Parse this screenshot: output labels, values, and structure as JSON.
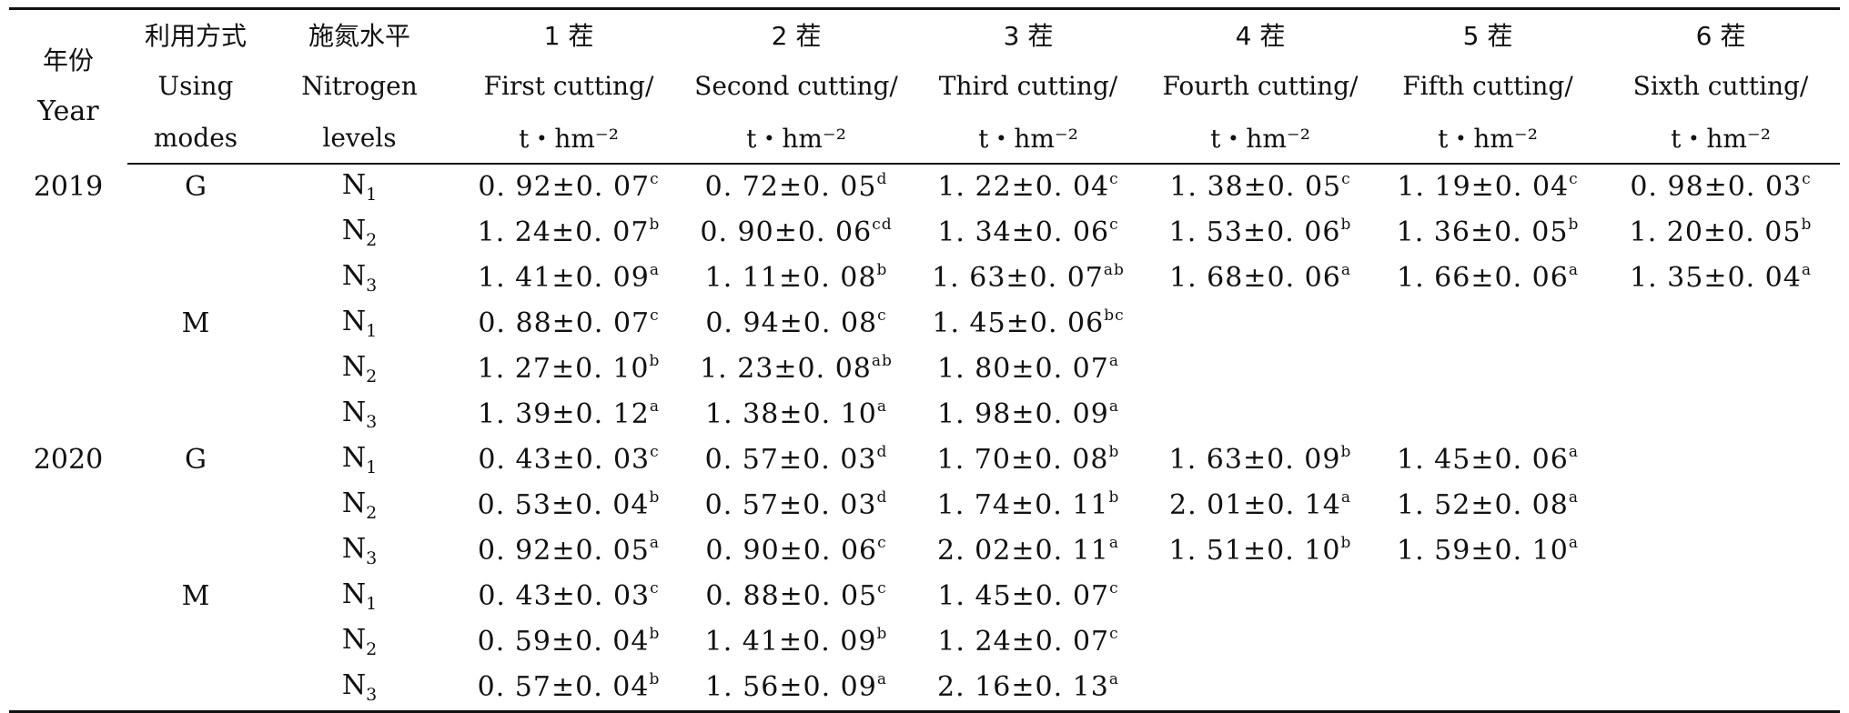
{
  "header": {
    "year_zh": "年份",
    "year_en": "Year",
    "mode_zh": "利用方式",
    "mode_en_1": "Using",
    "mode_en_2": "modes",
    "n_zh": "施氮水平",
    "n_en_1": "Nitrogen",
    "n_en_2": "levels",
    "unit": "t・hm⁻²",
    "cuttings": [
      {
        "zh": "1 茬",
        "en": "First cutting/"
      },
      {
        "zh": "2 茬",
        "en": "Second cutting/"
      },
      {
        "zh": "3 茬",
        "en": "Third cutting/"
      },
      {
        "zh": "4 茬",
        "en": "Fourth cutting/"
      },
      {
        "zh": "5 茬",
        "en": "Fifth cutting/"
      },
      {
        "zh": "6 茬",
        "en": "Sixth cutting/"
      }
    ]
  },
  "rows": [
    {
      "year": "2019",
      "mode": "G",
      "n": "N",
      "nsub": "1",
      "cells": [
        {
          "v": "0. 92±0. 07",
          "s": "c"
        },
        {
          "v": "0. 72±0. 05",
          "s": "d"
        },
        {
          "v": "1. 22±0. 04",
          "s": "c"
        },
        {
          "v": "1. 38±0. 05",
          "s": "c"
        },
        {
          "v": "1. 19±0. 04",
          "s": "c"
        },
        {
          "v": "0. 98±0. 03",
          "s": "c"
        }
      ]
    },
    {
      "year": "",
      "mode": "",
      "n": "N",
      "nsub": "2",
      "cells": [
        {
          "v": "1. 24±0. 07",
          "s": "b"
        },
        {
          "v": "0. 90±0. 06",
          "s": "cd"
        },
        {
          "v": "1. 34±0. 06",
          "s": "c"
        },
        {
          "v": "1. 53±0. 06",
          "s": "b"
        },
        {
          "v": "1. 36±0. 05",
          "s": "b"
        },
        {
          "v": "1. 20±0. 05",
          "s": "b"
        }
      ]
    },
    {
      "year": "",
      "mode": "",
      "n": "N",
      "nsub": "3",
      "cells": [
        {
          "v": "1. 41±0. 09",
          "s": "a"
        },
        {
          "v": "1. 11±0. 08",
          "s": "b"
        },
        {
          "v": "1. 63±0. 07",
          "s": "ab"
        },
        {
          "v": "1. 68±0. 06",
          "s": "a"
        },
        {
          "v": "1. 66±0. 06",
          "s": "a"
        },
        {
          "v": "1. 35±0. 04",
          "s": "a"
        }
      ]
    },
    {
      "year": "",
      "mode": "M",
      "n": "N",
      "nsub": "1",
      "cells": [
        {
          "v": "0. 88±0. 07",
          "s": "c"
        },
        {
          "v": "0. 94±0. 08",
          "s": "c"
        },
        {
          "v": "1. 45±0. 06",
          "s": "bc"
        },
        {
          "v": "",
          "s": ""
        },
        {
          "v": "",
          "s": ""
        },
        {
          "v": "",
          "s": ""
        }
      ]
    },
    {
      "year": "",
      "mode": "",
      "n": "N",
      "nsub": "2",
      "cells": [
        {
          "v": "1. 27±0. 10",
          "s": "b"
        },
        {
          "v": "1. 23±0. 08",
          "s": "ab"
        },
        {
          "v": "1. 80±0. 07",
          "s": "a"
        },
        {
          "v": "",
          "s": ""
        },
        {
          "v": "",
          "s": ""
        },
        {
          "v": "",
          "s": ""
        }
      ]
    },
    {
      "year": "",
      "mode": "",
      "n": "N",
      "nsub": "3",
      "cells": [
        {
          "v": "1. 39±0. 12",
          "s": "a"
        },
        {
          "v": "1. 38±0. 10",
          "s": "a"
        },
        {
          "v": "1. 98±0. 09",
          "s": "a"
        },
        {
          "v": "",
          "s": ""
        },
        {
          "v": "",
          "s": ""
        },
        {
          "v": "",
          "s": ""
        }
      ]
    },
    {
      "year": "2020",
      "mode": "G",
      "n": "N",
      "nsub": "1",
      "cells": [
        {
          "v": "0. 43±0. 03",
          "s": "c"
        },
        {
          "v": "0. 57±0. 03",
          "s": "d"
        },
        {
          "v": "1. 70±0. 08",
          "s": "b"
        },
        {
          "v": "1. 63±0. 09",
          "s": "b"
        },
        {
          "v": "1. 45±0. 06",
          "s": "a"
        },
        {
          "v": "",
          "s": ""
        }
      ]
    },
    {
      "year": "",
      "mode": "",
      "n": "N",
      "nsub": "2",
      "cells": [
        {
          "v": "0. 53±0. 04",
          "s": "b"
        },
        {
          "v": "0. 57±0. 03",
          "s": "d"
        },
        {
          "v": "1. 74±0. 11",
          "s": "b"
        },
        {
          "v": "2. 01±0. 14",
          "s": "a"
        },
        {
          "v": "1. 52±0. 08",
          "s": "a"
        },
        {
          "v": "",
          "s": ""
        }
      ]
    },
    {
      "year": "",
      "mode": "",
      "n": "N",
      "nsub": "3",
      "cells": [
        {
          "v": "0. 92±0. 05",
          "s": "a"
        },
        {
          "v": "0. 90±0. 06",
          "s": "c"
        },
        {
          "v": "2. 02±0. 11",
          "s": "a"
        },
        {
          "v": "1. 51±0. 10",
          "s": "b"
        },
        {
          "v": "1. 59±0. 10",
          "s": "a"
        },
        {
          "v": "",
          "s": ""
        }
      ]
    },
    {
      "year": "",
      "mode": "M",
      "n": "N",
      "nsub": "1",
      "cells": [
        {
          "v": "0. 43±0. 03",
          "s": "c"
        },
        {
          "v": "0. 88±0. 05",
          "s": "c"
        },
        {
          "v": "1. 45±0. 07",
          "s": "c"
        },
        {
          "v": "",
          "s": ""
        },
        {
          "v": "",
          "s": ""
        },
        {
          "v": "",
          "s": ""
        }
      ]
    },
    {
      "year": "",
      "mode": "",
      "n": "N",
      "nsub": "2",
      "cells": [
        {
          "v": "0. 59±0. 04",
          "s": "b"
        },
        {
          "v": "1. 41±0. 09",
          "s": "b"
        },
        {
          "v": "1. 24±0. 07",
          "s": "c"
        },
        {
          "v": "",
          "s": ""
        },
        {
          "v": "",
          "s": ""
        },
        {
          "v": "",
          "s": ""
        }
      ]
    },
    {
      "year": "",
      "mode": "",
      "n": "N",
      "nsub": "3",
      "cells": [
        {
          "v": "0. 57±0. 04",
          "s": "b"
        },
        {
          "v": "1. 56±0. 09",
          "s": "a"
        },
        {
          "v": "2. 16±0. 13",
          "s": "a"
        },
        {
          "v": "",
          "s": ""
        },
        {
          "v": "",
          "s": ""
        },
        {
          "v": "",
          "s": ""
        }
      ]
    }
  ]
}
